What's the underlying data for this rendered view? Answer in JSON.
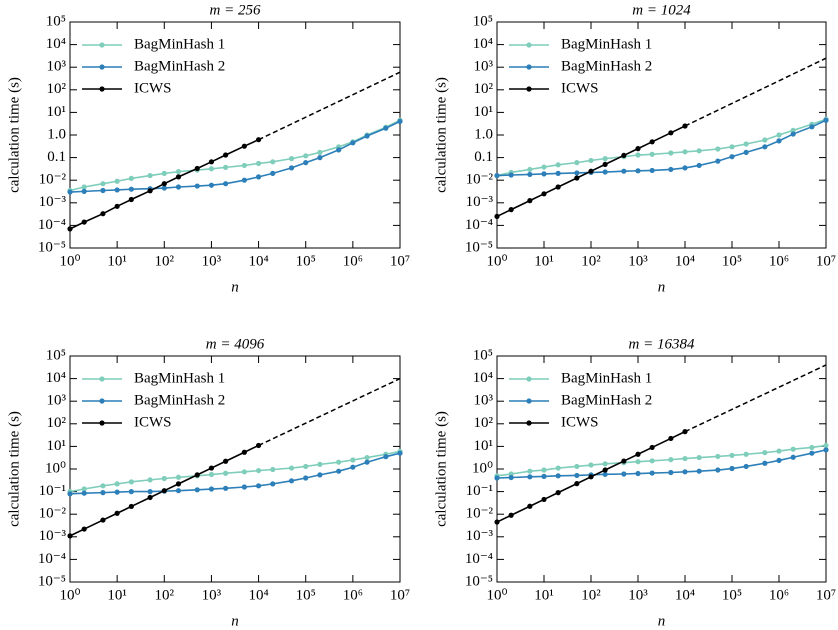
{
  "chart_data": [
    {
      "type": "line",
      "title": "m = 256",
      "xlabel": "n",
      "ylabel": "calculation time (s)",
      "xlog": true,
      "ylog": true,
      "legend": "upper left",
      "xlim": [
        1,
        10000000
      ],
      "ylim": [
        1e-05,
        100000
      ],
      "xticks": [
        {
          "value": 1,
          "label": "10⁰"
        },
        {
          "value": 10,
          "label": "10¹"
        },
        {
          "value": 100,
          "label": "10²"
        },
        {
          "value": 1000,
          "label": "10³"
        },
        {
          "value": 10000,
          "label": "10⁴"
        },
        {
          "value": 100000,
          "label": "10⁵"
        },
        {
          "value": 1000000,
          "label": "10⁶"
        },
        {
          "value": 10000000,
          "label": "10⁷"
        }
      ],
      "yticks": [
        {
          "value": 1e-05,
          "label": "10⁻⁵"
        },
        {
          "value": 0.0001,
          "label": "10⁻⁴"
        },
        {
          "value": 0.001,
          "label": "10⁻³"
        },
        {
          "value": 0.01,
          "label": "10⁻²"
        },
        {
          "value": 0.1,
          "label": "0.1"
        },
        {
          "value": 1,
          "label": "1.0"
        },
        {
          "value": 10,
          "label": "10¹"
        },
        {
          "value": 100,
          "label": "10²"
        },
        {
          "value": 1000,
          "label": "10³"
        },
        {
          "value": 10000,
          "label": "10⁴"
        },
        {
          "value": 100000,
          "label": "10⁵"
        }
      ],
      "x": [
        1,
        2,
        5,
        10,
        20,
        50,
        100,
        200,
        500,
        1000,
        2000,
        5000,
        10000,
        20000,
        50000,
        100000,
        200000,
        500000,
        1000000,
        2000000,
        5000000,
        10000000
      ],
      "series": [
        {
          "name": "BagMinHash 1",
          "color": "#7fcdbb",
          "values": [
            0.0035,
            0.005,
            0.007,
            0.009,
            0.012,
            0.016,
            0.02,
            0.024,
            0.028,
            0.032,
            0.037,
            0.045,
            0.055,
            0.065,
            0.09,
            0.12,
            0.17,
            0.3,
            0.5,
            1,
            2.2,
            4.5
          ]
        },
        {
          "name": "BagMinHash 2",
          "color": "#2c7fb8",
          "values": [
            0.003,
            0.0032,
            0.0035,
            0.0037,
            0.004,
            0.0042,
            0.0045,
            0.005,
            0.0055,
            0.006,
            0.007,
            0.01,
            0.014,
            0.02,
            0.035,
            0.06,
            0.1,
            0.22,
            0.45,
            0.9,
            2,
            4
          ]
        },
        {
          "name": "ICWS",
          "color": "#000000",
          "values": [
            7e-05,
            0.00014,
            0.00033,
            0.0007,
            0.0014,
            0.0034,
            0.007,
            0.014,
            0.033,
            0.065,
            0.13,
            0.32,
            0.62,
            null,
            null,
            null,
            null,
            null,
            null,
            null,
            null,
            null
          ],
          "extrapolation": {
            "x": [
              10000,
              10000000
            ],
            "values": [
              0.62,
              600
            ]
          }
        }
      ]
    },
    {
      "type": "line",
      "title": "m = 1024",
      "xlabel": "n",
      "ylabel": "calculation time (s)",
      "xlog": true,
      "ylog": true,
      "legend": "upper left",
      "xlim": [
        1,
        10000000
      ],
      "ylim": [
        1e-05,
        100000
      ],
      "xticks": [
        {
          "value": 1,
          "label": "10⁰"
        },
        {
          "value": 10,
          "label": "10¹"
        },
        {
          "value": 100,
          "label": "10²"
        },
        {
          "value": 1000,
          "label": "10³"
        },
        {
          "value": 10000,
          "label": "10⁴"
        },
        {
          "value": 100000,
          "label": "10⁵"
        },
        {
          "value": 1000000,
          "label": "10⁶"
        },
        {
          "value": 10000000,
          "label": "10⁷"
        }
      ],
      "yticks": [
        {
          "value": 1e-05,
          "label": "10⁻⁵"
        },
        {
          "value": 0.0001,
          "label": "10⁻⁴"
        },
        {
          "value": 0.001,
          "label": "10⁻³"
        },
        {
          "value": 0.01,
          "label": "10⁻²"
        },
        {
          "value": 0.1,
          "label": "0.1"
        },
        {
          "value": 1,
          "label": "1.0"
        },
        {
          "value": 10,
          "label": "10¹"
        },
        {
          "value": 100,
          "label": "10²"
        },
        {
          "value": 1000,
          "label": "10³"
        },
        {
          "value": 10000,
          "label": "10⁴"
        },
        {
          "value": 100000,
          "label": "10⁵"
        }
      ],
      "x": [
        1,
        2,
        5,
        10,
        20,
        50,
        100,
        200,
        500,
        1000,
        2000,
        5000,
        10000,
        20000,
        50000,
        100000,
        200000,
        500000,
        1000000,
        2000000,
        5000000,
        10000000
      ],
      "series": [
        {
          "name": "BagMinHash 1",
          "color": "#7fcdbb",
          "values": [
            0.016,
            0.022,
            0.03,
            0.038,
            0.048,
            0.06,
            0.075,
            0.09,
            0.11,
            0.13,
            0.14,
            0.16,
            0.18,
            0.2,
            0.24,
            0.3,
            0.4,
            0.6,
            1,
            1.6,
            3,
            5
          ]
        },
        {
          "name": "BagMinHash 2",
          "color": "#2c7fb8",
          "values": [
            0.016,
            0.017,
            0.018,
            0.019,
            0.02,
            0.021,
            0.022,
            0.023,
            0.025,
            0.026,
            0.027,
            0.03,
            0.035,
            0.045,
            0.07,
            0.11,
            0.17,
            0.3,
            0.55,
            1.1,
            2.3,
            4.5
          ]
        },
        {
          "name": "ICWS",
          "color": "#000000",
          "values": [
            0.00025,
            0.0005,
            0.00125,
            0.0025,
            0.005,
            0.0125,
            0.025,
            0.05,
            0.125,
            0.25,
            0.5,
            1.25,
            2.5,
            null,
            null,
            null,
            null,
            null,
            null,
            null,
            null,
            null
          ],
          "extrapolation": {
            "x": [
              10000,
              10000000
            ],
            "values": [
              2.5,
              2500
            ]
          }
        }
      ]
    },
    {
      "type": "line",
      "title": "m = 4096",
      "xlabel": "n",
      "ylabel": "calculation time (s)",
      "xlog": true,
      "ylog": true,
      "legend": "upper left",
      "xlim": [
        1,
        10000000
      ],
      "ylim": [
        1e-05,
        100000
      ],
      "xticks": [
        {
          "value": 1,
          "label": "10⁰"
        },
        {
          "value": 10,
          "label": "10¹"
        },
        {
          "value": 100,
          "label": "10²"
        },
        {
          "value": 1000,
          "label": "10³"
        },
        {
          "value": 10000,
          "label": "10⁴"
        },
        {
          "value": 100000,
          "label": "10⁵"
        },
        {
          "value": 1000000,
          "label": "10⁶"
        },
        {
          "value": 10000000,
          "label": "10⁷"
        }
      ],
      "yticks": [
        {
          "value": 1e-05,
          "label": "10⁻⁵"
        },
        {
          "value": 0.0001,
          "label": "10⁻⁴"
        },
        {
          "value": 0.001,
          "label": "10⁻³"
        },
        {
          "value": 0.01,
          "label": "10⁻²"
        },
        {
          "value": 0.1,
          "label": "10⁻¹"
        },
        {
          "value": 1,
          "label": "10⁰"
        },
        {
          "value": 10,
          "label": "10¹"
        },
        {
          "value": 100,
          "label": "10²"
        },
        {
          "value": 1000,
          "label": "10³"
        },
        {
          "value": 10000,
          "label": "10⁴"
        },
        {
          "value": 100000,
          "label": "10⁵"
        }
      ],
      "x": [
        1,
        2,
        5,
        10,
        20,
        50,
        100,
        200,
        500,
        1000,
        2000,
        5000,
        10000,
        20000,
        50000,
        100000,
        200000,
        500000,
        1000000,
        2000000,
        5000000,
        10000000
      ],
      "series": [
        {
          "name": "BagMinHash 1",
          "color": "#7fcdbb",
          "values": [
            0.1,
            0.13,
            0.18,
            0.22,
            0.27,
            0.33,
            0.38,
            0.43,
            0.5,
            0.57,
            0.65,
            0.75,
            0.85,
            0.95,
            1.1,
            1.3,
            1.6,
            2,
            2.5,
            3.2,
            4.5,
            6
          ]
        },
        {
          "name": "BagMinHash 2",
          "color": "#2c7fb8",
          "values": [
            0.08,
            0.085,
            0.09,
            0.095,
            0.1,
            0.1,
            0.105,
            0.11,
            0.12,
            0.13,
            0.14,
            0.16,
            0.18,
            0.22,
            0.3,
            0.4,
            0.55,
            0.8,
            1.2,
            2,
            3.5,
            5
          ]
        },
        {
          "name": "ICWS",
          "color": "#000000",
          "values": [
            0.0011,
            0.0022,
            0.0055,
            0.011,
            0.022,
            0.055,
            0.11,
            0.22,
            0.55,
            1.1,
            2.2,
            5.5,
            11,
            null,
            null,
            null,
            null,
            null,
            null,
            null,
            null,
            null
          ],
          "extrapolation": {
            "x": [
              10000,
              10000000
            ],
            "values": [
              11,
              10000
            ]
          }
        }
      ]
    },
    {
      "type": "line",
      "title": "m = 16384",
      "xlabel": "n",
      "ylabel": "calculation time (s)",
      "xlog": true,
      "ylog": true,
      "legend": "upper left",
      "xlim": [
        1,
        10000000
      ],
      "ylim": [
        1e-05,
        100000
      ],
      "xticks": [
        {
          "value": 1,
          "label": "10⁰"
        },
        {
          "value": 10,
          "label": "10¹"
        },
        {
          "value": 100,
          "label": "10²"
        },
        {
          "value": 1000,
          "label": "10³"
        },
        {
          "value": 10000,
          "label": "10⁴"
        },
        {
          "value": 100000,
          "label": "10⁵"
        },
        {
          "value": 1000000,
          "label": "10⁶"
        },
        {
          "value": 10000000,
          "label": "10⁷"
        }
      ],
      "yticks": [
        {
          "value": 1e-05,
          "label": "10⁻⁵"
        },
        {
          "value": 0.0001,
          "label": "10⁻⁴"
        },
        {
          "value": 0.001,
          "label": "10⁻³"
        },
        {
          "value": 0.01,
          "label": "10⁻²"
        },
        {
          "value": 0.1,
          "label": "10⁻¹"
        },
        {
          "value": 1,
          "label": "10⁰"
        },
        {
          "value": 10,
          "label": "10¹"
        },
        {
          "value": 100,
          "label": "10²"
        },
        {
          "value": 1000,
          "label": "10³"
        },
        {
          "value": 10000,
          "label": "10⁴"
        },
        {
          "value": 100000,
          "label": "10⁵"
        }
      ],
      "x": [
        1,
        2,
        5,
        10,
        20,
        50,
        100,
        200,
        500,
        1000,
        2000,
        5000,
        10000,
        20000,
        50000,
        100000,
        200000,
        500000,
        1000000,
        2000000,
        5000000,
        10000000
      ],
      "series": [
        {
          "name": "BagMinHash 1",
          "color": "#7fcdbb",
          "values": [
            0.5,
            0.6,
            0.8,
            0.9,
            1.1,
            1.3,
            1.5,
            1.7,
            1.9,
            2.1,
            2.3,
            2.6,
            2.9,
            3.2,
            3.6,
            4,
            4.5,
            5.3,
            6.2,
            7.5,
            9,
            11
          ]
        },
        {
          "name": "BagMinHash 2",
          "color": "#2c7fb8",
          "values": [
            0.4,
            0.42,
            0.45,
            0.47,
            0.5,
            0.52,
            0.55,
            0.58,
            0.6,
            0.63,
            0.66,
            0.7,
            0.75,
            0.8,
            0.9,
            1.05,
            1.3,
            1.8,
            2.4,
            3.3,
            5,
            7
          ]
        },
        {
          "name": "ICWS",
          "color": "#000000",
          "values": [
            0.0045,
            0.009,
            0.0225,
            0.045,
            0.09,
            0.225,
            0.45,
            0.9,
            2.25,
            4.5,
            9,
            22.5,
            45,
            null,
            null,
            null,
            null,
            null,
            null,
            null,
            null,
            null
          ],
          "extrapolation": {
            "x": [
              10000,
              10000000
            ],
            "values": [
              45,
              40000
            ]
          }
        }
      ]
    }
  ]
}
